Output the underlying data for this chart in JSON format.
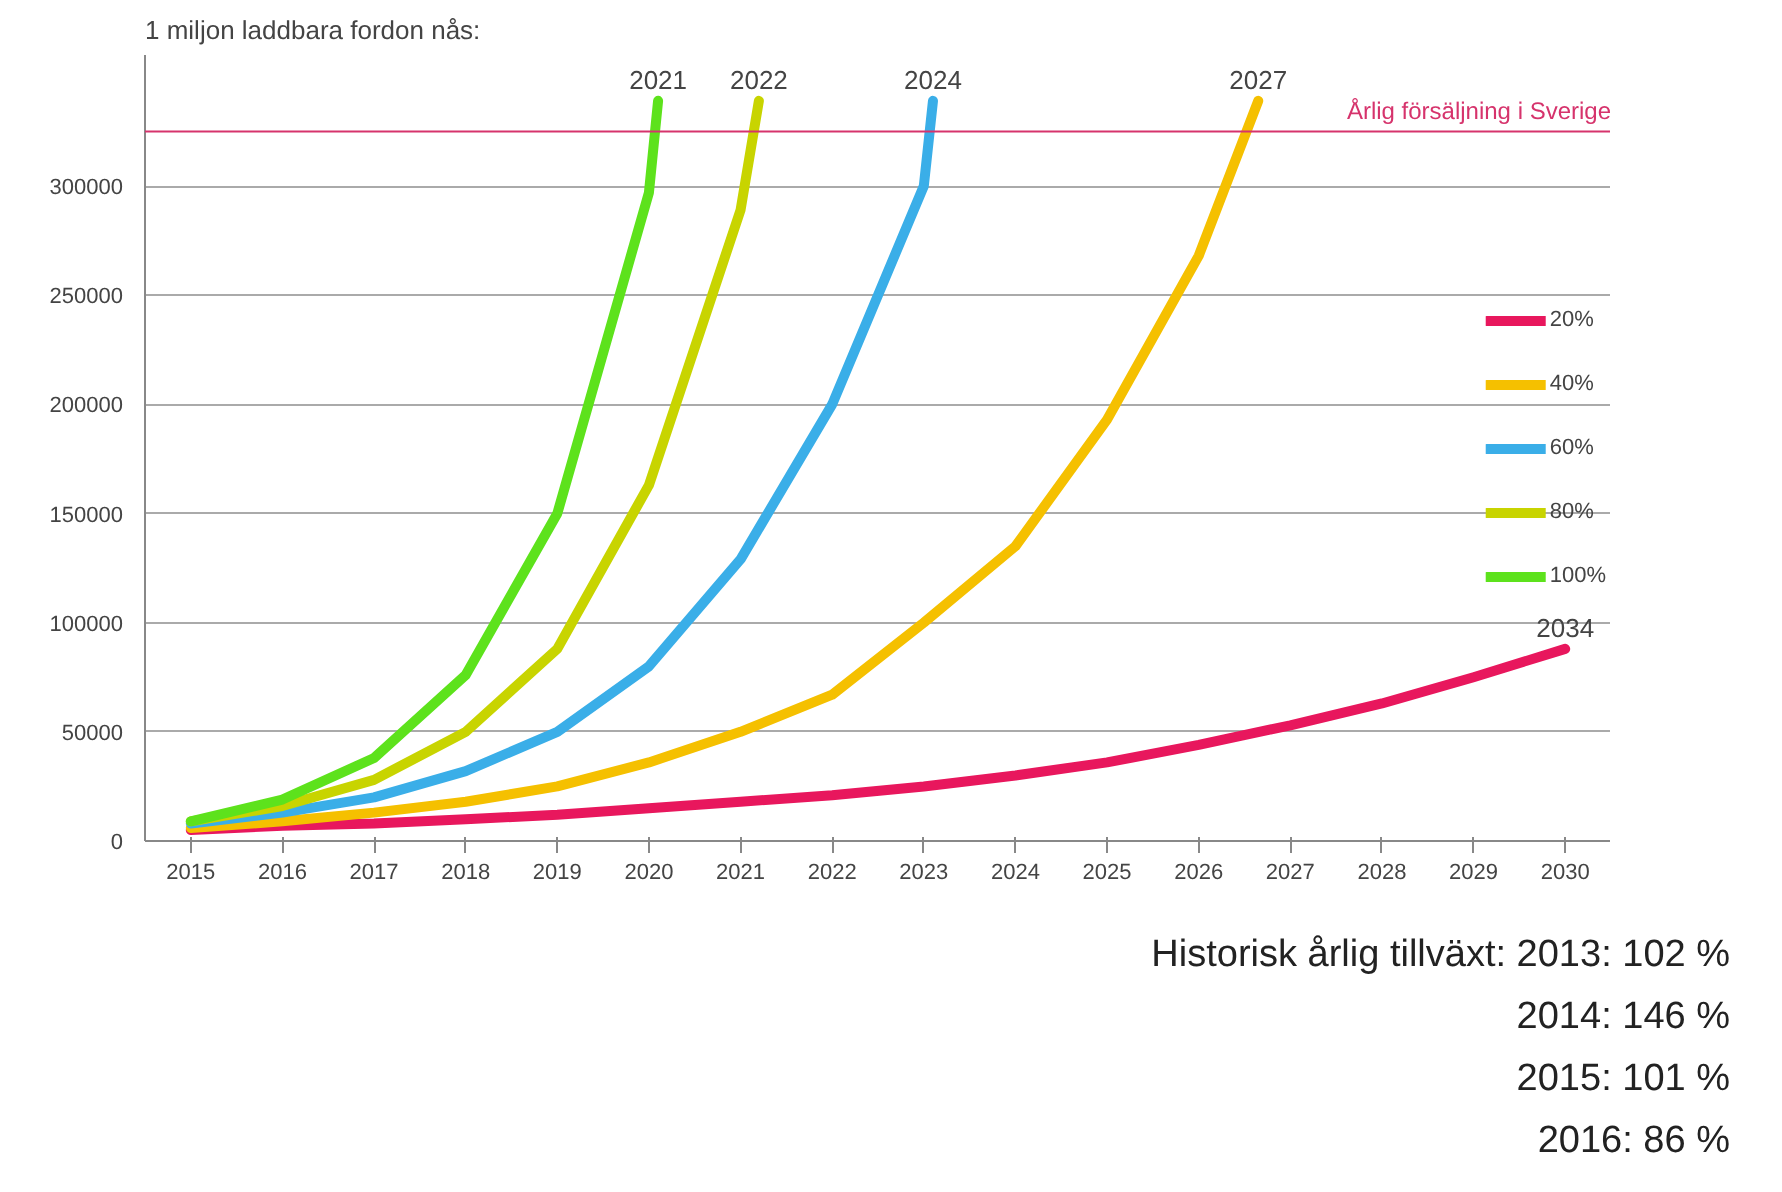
{
  "chart_data": {
    "type": "line",
    "title": "1 miljon laddbara fordon nås:",
    "xlim": [
      2014.5,
      2030.5
    ],
    "xticks": [
      2015,
      2016,
      2017,
      2018,
      2019,
      2020,
      2021,
      2022,
      2023,
      2024,
      2025,
      2026,
      2027,
      2028,
      2029,
      2030
    ],
    "ylim": [
      0,
      360000
    ],
    "yticks": [
      0,
      50000,
      100000,
      150000,
      200000,
      250000,
      300000
    ],
    "grid": "y",
    "legend": "right",
    "series": [
      {
        "name": "20%",
        "color": "#e8175d",
        "x": [
          2015,
          2016,
          2017,
          2018,
          2019,
          2020,
          2021,
          2022,
          2023,
          2024,
          2025,
          2026,
          2027,
          2028,
          2029,
          2030
        ],
        "values": [
          5000,
          7000,
          8000,
          10000,
          12000,
          15000,
          18000,
          21000,
          25000,
          30000,
          36000,
          44000,
          53000,
          63000,
          75000,
          88000
        ]
      },
      {
        "name": "40%",
        "color": "#f5c000",
        "x": [
          2015,
          2016,
          2017,
          2018,
          2019,
          2020,
          2021,
          2022,
          2023,
          2024,
          2025,
          2026,
          2026.65
        ],
        "values": [
          6000,
          9000,
          13000,
          18000,
          25000,
          36000,
          50000,
          67000,
          100000,
          135000,
          193000,
          268000,
          339000
        ]
      },
      {
        "name": "60%",
        "color": "#3aaee8",
        "x": [
          2015,
          2016,
          2017,
          2018,
          2019,
          2020,
          2021,
          2022,
          2023,
          2023.1
        ],
        "values": [
          8000,
          13000,
          20000,
          32000,
          50000,
          80000,
          129000,
          200000,
          300000,
          339000
        ]
      },
      {
        "name": "80%",
        "color": "#c8d400",
        "x": [
          2015,
          2016,
          2017,
          2018,
          2019,
          2020,
          2021,
          2021.2
        ],
        "values": [
          9000,
          16000,
          28000,
          50000,
          88000,
          163000,
          289000,
          339000
        ]
      },
      {
        "name": "100%",
        "color": "#5de21c",
        "x": [
          2015,
          2016,
          2017,
          2018,
          2019,
          2020,
          2020.1
        ],
        "values": [
          9000,
          19000,
          38000,
          76000,
          150000,
          297000,
          339000
        ]
      }
    ],
    "ref_lines": [
      {
        "axis": "y",
        "value": 325000,
        "label": "Årlig försäljning i Sverige",
        "color": "#d6336c"
      }
    ],
    "annotations": [
      {
        "text": "2021",
        "x": 2020.1,
        "y": 339000
      },
      {
        "text": "2022",
        "x": 2021.2,
        "y": 339000
      },
      {
        "text": "2024",
        "x": 2023.1,
        "y": 339000
      },
      {
        "text": "2027",
        "x": 2026.65,
        "y": 339000
      },
      {
        "text": "2034",
        "x": 2030,
        "y": 88000
      },
      "Historisk årlig tillväxt: 2013: 102 %",
      "2014: 146 %",
      "2015: 101 %",
      "2016: 86 %"
    ]
  }
}
